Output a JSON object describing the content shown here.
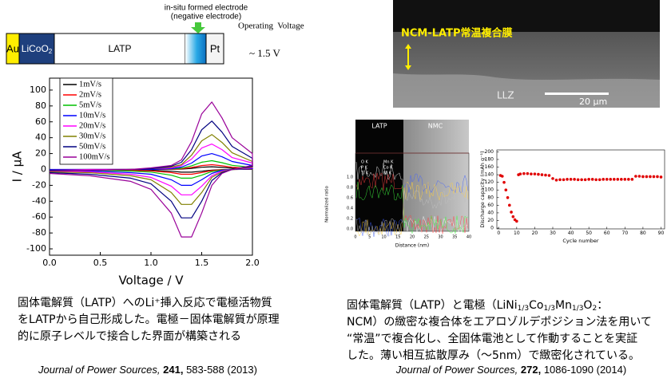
{
  "diagram": {
    "top_note": [
      "in-situ formed electrode",
      "(negative electrode)"
    ],
    "operating_label": "Operating  Voltage",
    "voltage": "~ 1.5 V",
    "layers": {
      "au": "Au",
      "licoo2": [
        "LiCoO",
        "2"
      ],
      "latp": "LATP",
      "pt": "Pt"
    }
  },
  "sem_image": {
    "film_label": "NCM-LATP常温複合膜",
    "substrate_label": "LLZ",
    "scale_label": "20 µm"
  },
  "eds_image": {
    "left_label": "LATP",
    "right_label": "NMC",
    "legend": [
      "O K",
      "Mn K",
      "P K",
      "Co K",
      "Ti K",
      "Ni K"
    ],
    "y_label": "Normalized ratio",
    "x_label": "Distance (nm)",
    "y_ticks": [
      "0.0",
      "0.2",
      "0.4",
      "0.6",
      "0.8",
      "1.0"
    ],
    "x_ticks": [
      "0",
      "5",
      "10",
      "15",
      "20",
      "25",
      "30",
      "35",
      "40"
    ]
  },
  "chart_data": [
    {
      "type": "line",
      "x_label": "Voltage / V",
      "y_label": "I / µA",
      "x": [
        0,
        0.4,
        0.8,
        1.0,
        1.2,
        1.3,
        1.4,
        1.5,
        1.6,
        1.7,
        1.8,
        2.0,
        2.0,
        1.8,
        1.7,
        1.6,
        1.5,
        1.4,
        1.3,
        1.2,
        1.0,
        0.8,
        0.4,
        0
      ],
      "xlim": [
        0,
        2
      ],
      "xticks": [
        {
          "value": 0,
          "label": "0.0"
        },
        0.5,
        {
          "value": 1,
          "label": "1.0"
        },
        1.5,
        {
          "value": 2,
          "label": "2.0"
        }
      ],
      "ylim": [
        -108,
        115
      ],
      "yticks": [
        100,
        80,
        60,
        40,
        20,
        0,
        -20,
        -40,
        -60,
        -80,
        -100
      ],
      "series": [
        {
          "name": "1mV/s",
          "color": "#000000",
          "values": [
            -0.1,
            0,
            0,
            0.1,
            0.2,
            0.5,
            1.4,
            2.8,
            3.4,
            2.6,
            1.6,
            0.8,
            0.2,
            0,
            -0.2,
            -0.8,
            -2.2,
            -3.4,
            -3.4,
            -2.2,
            -1,
            -0.6,
            -0.3,
            -0.2
          ]
        },
        {
          "name": "2mV/s",
          "color": "#ff0000",
          "values": [
            -0.1,
            -0.1,
            0,
            0.1,
            0.4,
            0.8,
            2.5,
            4.9,
            6,
            4.6,
            2.8,
            1.4,
            0.4,
            0,
            -0.4,
            -1.4,
            -3.9,
            -6,
            -6,
            -3.9,
            -1.8,
            -1.1,
            -0.6,
            -0.4
          ]
        },
        {
          "name": "5mV/s",
          "color": "#00c000",
          "values": [
            -0.3,
            -0.1,
            0,
            0.3,
            0.7,
            1.6,
            4.6,
            9.1,
            11,
            8.5,
            5.2,
            2.6,
            0.7,
            0,
            -0.7,
            -2.6,
            -7.2,
            -11,
            -11,
            -7.2,
            -3.3,
            -2,
            -1,
            -0.7
          ]
        },
        {
          "name": "10mV/s",
          "color": "#0000ff",
          "values": [
            0,
            0,
            0,
            0,
            1,
            3,
            8,
            17,
            20,
            16,
            10,
            5,
            1,
            0,
            -1,
            -5,
            -13,
            -20,
            -20,
            -13,
            -6,
            -4,
            -2,
            -1
          ]
        },
        {
          "name": "20mV/s",
          "color": "#ff00ff",
          "values": [
            -1,
            0,
            0,
            1,
            2,
            5,
            13,
            27,
            32,
            25,
            15,
            8,
            2,
            0,
            -2,
            -8,
            -21,
            -32,
            -32,
            -21,
            -10,
            -6,
            -3,
            -2
          ]
        },
        {
          "name": "30mV/s",
          "color": "#808000",
          "values": [
            -1,
            -1,
            0,
            1,
            3,
            6,
            18,
            36,
            44,
            34,
            21,
            10,
            3,
            0,
            -3,
            -10,
            -29,
            -44,
            -44,
            -29,
            -13,
            -8,
            -4,
            -3
          ]
        },
        {
          "name": "50mV/s",
          "color": "#000080",
          "values": [
            -1,
            -1,
            0,
            1,
            4,
            9,
            25,
            50,
            61,
            47,
            29,
            14,
            4,
            0,
            -4,
            -14,
            -40,
            -61,
            -61,
            -40,
            -18,
            -11,
            -6,
            -4
          ]
        },
        {
          "name": "100mV/s",
          "color": "#990099",
          "values": [
            -2,
            -1,
            0,
            2,
            5,
            12,
            35,
            70,
            85,
            65,
            40,
            20,
            5,
            0,
            -5,
            -20,
            -55,
            -85,
            -85,
            -55,
            -25,
            -15,
            -8,
            -5
          ]
        }
      ]
    },
    {
      "type": "scatter",
      "x_label": "Cycle number",
      "y_label": "Discharge capacity (mAh g⁻¹)",
      "color": "#e00000",
      "x": [
        1,
        2,
        3,
        4,
        5,
        6,
        7,
        8,
        9,
        10,
        11,
        12,
        14,
        16,
        18,
        20,
        22,
        24,
        26,
        28,
        30,
        32,
        34,
        36,
        38,
        40,
        42,
        44,
        46,
        48,
        50,
        52,
        54,
        56,
        58,
        60,
        62,
        64,
        66,
        68,
        70,
        72,
        74,
        76,
        78,
        80,
        82,
        84,
        86,
        88,
        90
      ],
      "values": [
        138,
        136,
        120,
        100,
        80,
        60,
        42,
        30,
        22,
        18,
        140,
        142,
        143,
        143,
        142,
        142,
        141,
        140,
        139,
        138,
        130,
        126,
        127,
        127,
        128,
        128,
        128,
        127,
        127,
        127,
        128,
        128,
        127,
        127,
        128,
        128,
        128,
        128,
        128,
        128,
        128,
        128,
        128,
        136,
        136,
        135,
        135,
        135,
        135,
        135,
        134
      ],
      "xlim": [
        -1,
        92
      ],
      "xticks": [
        0,
        10,
        20,
        30,
        40,
        50,
        60,
        70,
        80,
        90
      ],
      "ylim": [
        -2,
        205
      ],
      "yticks": [
        0,
        20,
        40,
        60,
        80,
        100,
        120,
        140,
        160,
        180,
        200
      ]
    }
  ],
  "captions": {
    "left": {
      "lines": [
        "固体電解質（LATP）へのLi⁺挿入反応で電極活物質",
        "をLATPから自己形成した。電極－固体電解質が原理",
        "的に原子レベルで接合した界面が構築される"
      ],
      "citation": {
        "journal": "Journal of Power Sources,",
        "volume": "241,",
        "pages": "583-588 (2013)"
      }
    },
    "right": {
      "first_line": [
        "固体電解質（LATP）と電極（LiNi",
        "1/3",
        "Co",
        "1/3",
        "Mn",
        "1/3",
        "O",
        "2",
        "："
      ],
      "lines": [
        "NCM）の緻密な複合体をエアロゾルデポジション法を用いて",
        "“常温”で複合化し、全固体電池として作動することを実証",
        "した。薄い相互拡散厚み（～5nm）で緻密化されている。"
      ],
      "citation": {
        "journal": "Journal of Power Sources,",
        "volume": "272,",
        "pages": "1086-1090 (2014)"
      }
    }
  }
}
